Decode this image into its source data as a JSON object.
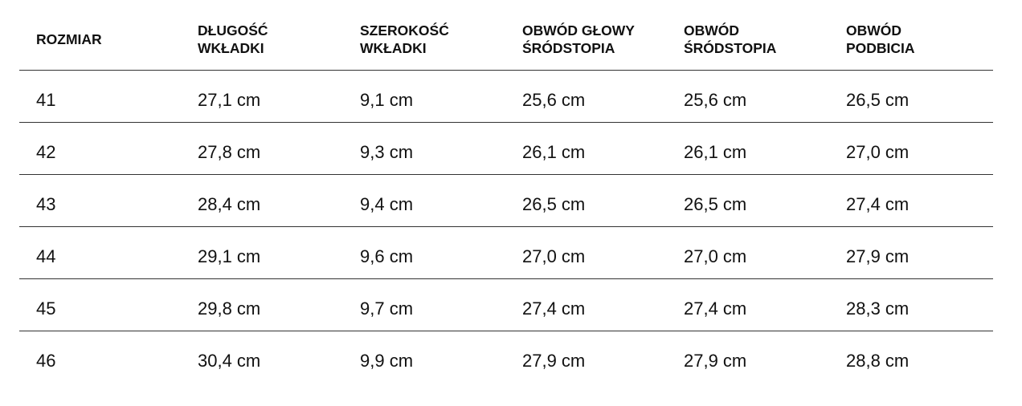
{
  "headers": [
    "ROZMIAR",
    "DŁUGOŚĆ\nWKŁADKI",
    "SZEROKOŚĆ\nWKŁADKI",
    "OBWÓD GŁOWY\nŚRÓDSTOPIA",
    "OBWÓD\nŚRÓDSTOPIA",
    "OBWÓD\nPODBICIA"
  ],
  "rows": [
    [
      "41",
      "27,1 cm",
      "9,1 cm",
      "25,6 cm",
      "25,6 cm",
      "26,5 cm"
    ],
    [
      "42",
      "27,8 cm",
      "9,3 cm",
      "26,1 cm",
      "26,1 cm",
      "27,0 cm"
    ],
    [
      "43",
      "28,4 cm",
      "9,4 cm",
      "26,5 cm",
      "26,5 cm",
      "27,4 cm"
    ],
    [
      "44",
      "29,1 cm",
      "9,6 cm",
      "27,0 cm",
      "27,0 cm",
      "27,9 cm"
    ],
    [
      "45",
      "29,8 cm",
      "9,7 cm",
      "27,4 cm",
      "27,4 cm",
      "28,3 cm"
    ],
    [
      "46",
      "30,4 cm",
      "9,9 cm",
      "27,9 cm",
      "27,9 cm",
      "28,8 cm"
    ]
  ]
}
